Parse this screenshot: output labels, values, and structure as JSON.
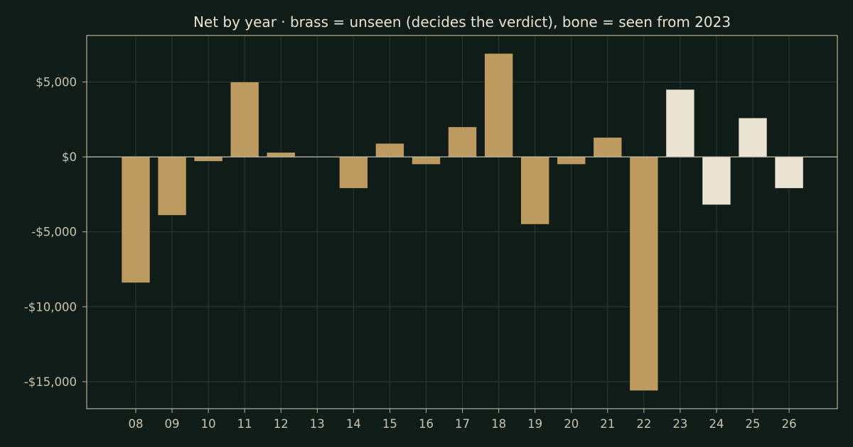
{
  "chart_data": {
    "type": "bar",
    "title": "Net by year  ·  brass = unseen (decides the verdict), bone = seen from 2023",
    "xlabel": "",
    "ylabel": "",
    "categories": [
      "08",
      "09",
      "10",
      "11",
      "12",
      "13",
      "14",
      "15",
      "16",
      "17",
      "18",
      "19",
      "20",
      "21",
      "22",
      "23",
      "24",
      "25",
      "26"
    ],
    "values": [
      -8400,
      -3900,
      -300,
      5000,
      300,
      0,
      -2100,
      900,
      -500,
      2000,
      6900,
      -4500,
      -500,
      1300,
      -15600,
      4500,
      -3200,
      2600,
      -2100
    ],
    "groups": [
      "unseen",
      "unseen",
      "unseen",
      "unseen",
      "unseen",
      "unseen",
      "unseen",
      "unseen",
      "unseen",
      "unseen",
      "unseen",
      "unseen",
      "unseen",
      "unseen",
      "unseen",
      "seen",
      "seen",
      "seen",
      "seen"
    ],
    "ylim": [
      -16800,
      8100
    ],
    "yticks": [
      5000,
      0,
      -5000,
      -10000,
      -15000
    ],
    "ytick_labels": [
      "$5,000",
      "$0",
      "-$5,000",
      "-$10,000",
      "-$15,000"
    ],
    "grid": true,
    "colors": {
      "background": "#0f1c17",
      "unseen": "#bd9a60",
      "seen": "#ebe4d2",
      "grid": "#2e3b33",
      "frame": "#b9b39f",
      "text": "#c9c3b0",
      "title": "#e9e4d4"
    }
  }
}
